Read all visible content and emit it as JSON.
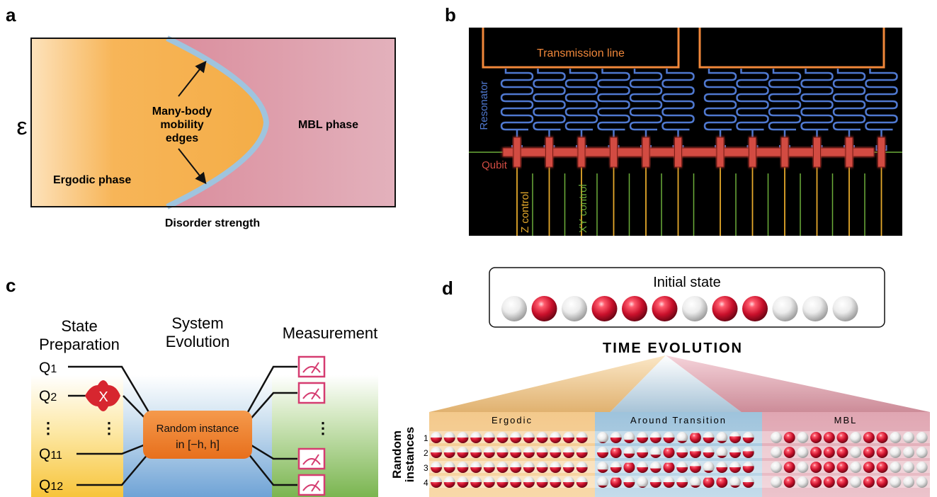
{
  "panels": {
    "a": {
      "letter": "a",
      "y_symbol": "ε",
      "x_label": "Disorder strength",
      "ergodic_label": "Ergodic phase",
      "mbl_label": "MBL phase",
      "edges_label": [
        "Many-body",
        "mobility",
        "edges"
      ]
    },
    "b": {
      "letter": "b",
      "transmission_label": "Transmission line",
      "resonator_label": "Resonator",
      "qubit_label": "Qubit",
      "z_control_label": "Z control",
      "xy_control_label": "XY control",
      "qubit_count": 12
    },
    "c": {
      "letter": "c",
      "state_prep_label": [
        "State",
        "Preparation"
      ],
      "evolution_label": [
        "System",
        "Evolution"
      ],
      "measurement_label": "Measurement",
      "qubit_labels": [
        {
          "base": "Q",
          "sub": "1"
        },
        {
          "base": "Q",
          "sub": "2"
        },
        {
          "base": "Q",
          "sub": "11"
        },
        {
          "base": "Q",
          "sub": "12"
        }
      ],
      "x_gate_label": "X",
      "random_box_label": [
        "Random instance",
        "in [−h, h]"
      ]
    },
    "d": {
      "letter": "d",
      "initial_state_title": "Initial state",
      "initial_state": [
        0,
        1,
        0,
        1,
        1,
        1,
        0,
        1,
        1,
        0,
        0,
        0
      ],
      "time_evolution_label": "TIME EVOLUTION",
      "regimes": [
        "Ergodic",
        "Around Transition",
        "MBL"
      ],
      "rows_label": [
        "Random",
        "instances"
      ],
      "row_numbers": [
        "1",
        "2",
        "3",
        "4"
      ]
    }
  },
  "colors": {
    "ergodic": "#f6b456",
    "mbl": "#d98a99",
    "boundary": "#9fc4de",
    "transmission": "#f0873a",
    "resonator": "#4f78cf",
    "qubit": "#d24c43",
    "z_control": "#e5a92b",
    "xy_control": "#6cae3a",
    "red_ball": "#c9102b"
  }
}
